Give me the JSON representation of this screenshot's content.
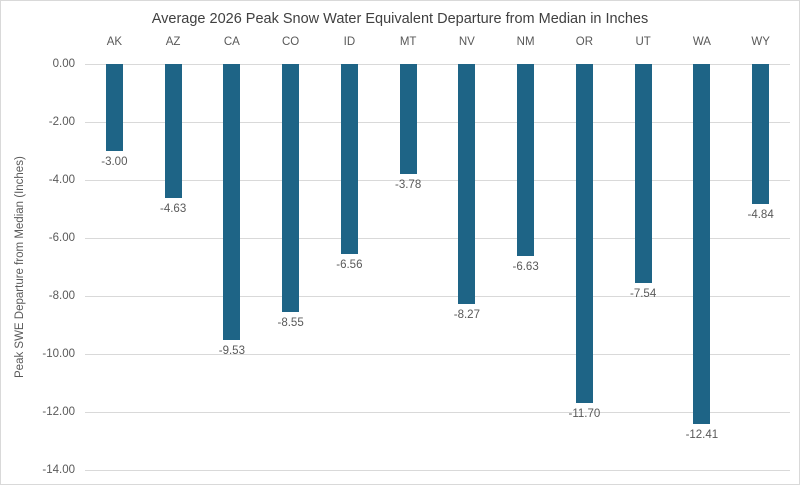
{
  "chart_data": {
    "type": "bar",
    "title": "Average 2026 Peak Snow Water Equivalent Departure from Median in Inches",
    "xlabel": "",
    "ylabel": "Peak SWE Departure from Median (Inches)",
    "categories": [
      "AK",
      "AZ",
      "CA",
      "CO",
      "ID",
      "MT",
      "NV",
      "NM",
      "OR",
      "UT",
      "WA",
      "WY"
    ],
    "values": [
      -3.0,
      -4.63,
      -9.53,
      -8.55,
      -6.56,
      -3.78,
      -8.27,
      -6.63,
      -11.7,
      -7.54,
      -12.41,
      -4.84
    ],
    "data_labels": [
      "-3.00",
      "-4.63",
      "-9.53",
      "-8.55",
      "-6.56",
      "-3.78",
      "-8.27",
      "-6.63",
      "-11.70",
      "-7.54",
      "-12.41",
      "-4.84"
    ],
    "ylim": [
      -14,
      0
    ],
    "y_tick_values": [
      0,
      -2,
      -4,
      -6,
      -8,
      -10,
      -12,
      -14
    ],
    "y_tick_labels": [
      "0.00",
      "-2.00",
      "-4.00",
      "-6.00",
      "-8.00",
      "-10.00",
      "-12.00",
      "-14.00"
    ],
    "grid": true,
    "legend": "none",
    "category_axis_position": "top",
    "colors": {
      "bar": "#1e6486",
      "gridline": "#d9d9d9",
      "title_text": "#404040",
      "axis_text": "#595959",
      "background": "#ffffff",
      "border": "#d9d9d9"
    }
  }
}
